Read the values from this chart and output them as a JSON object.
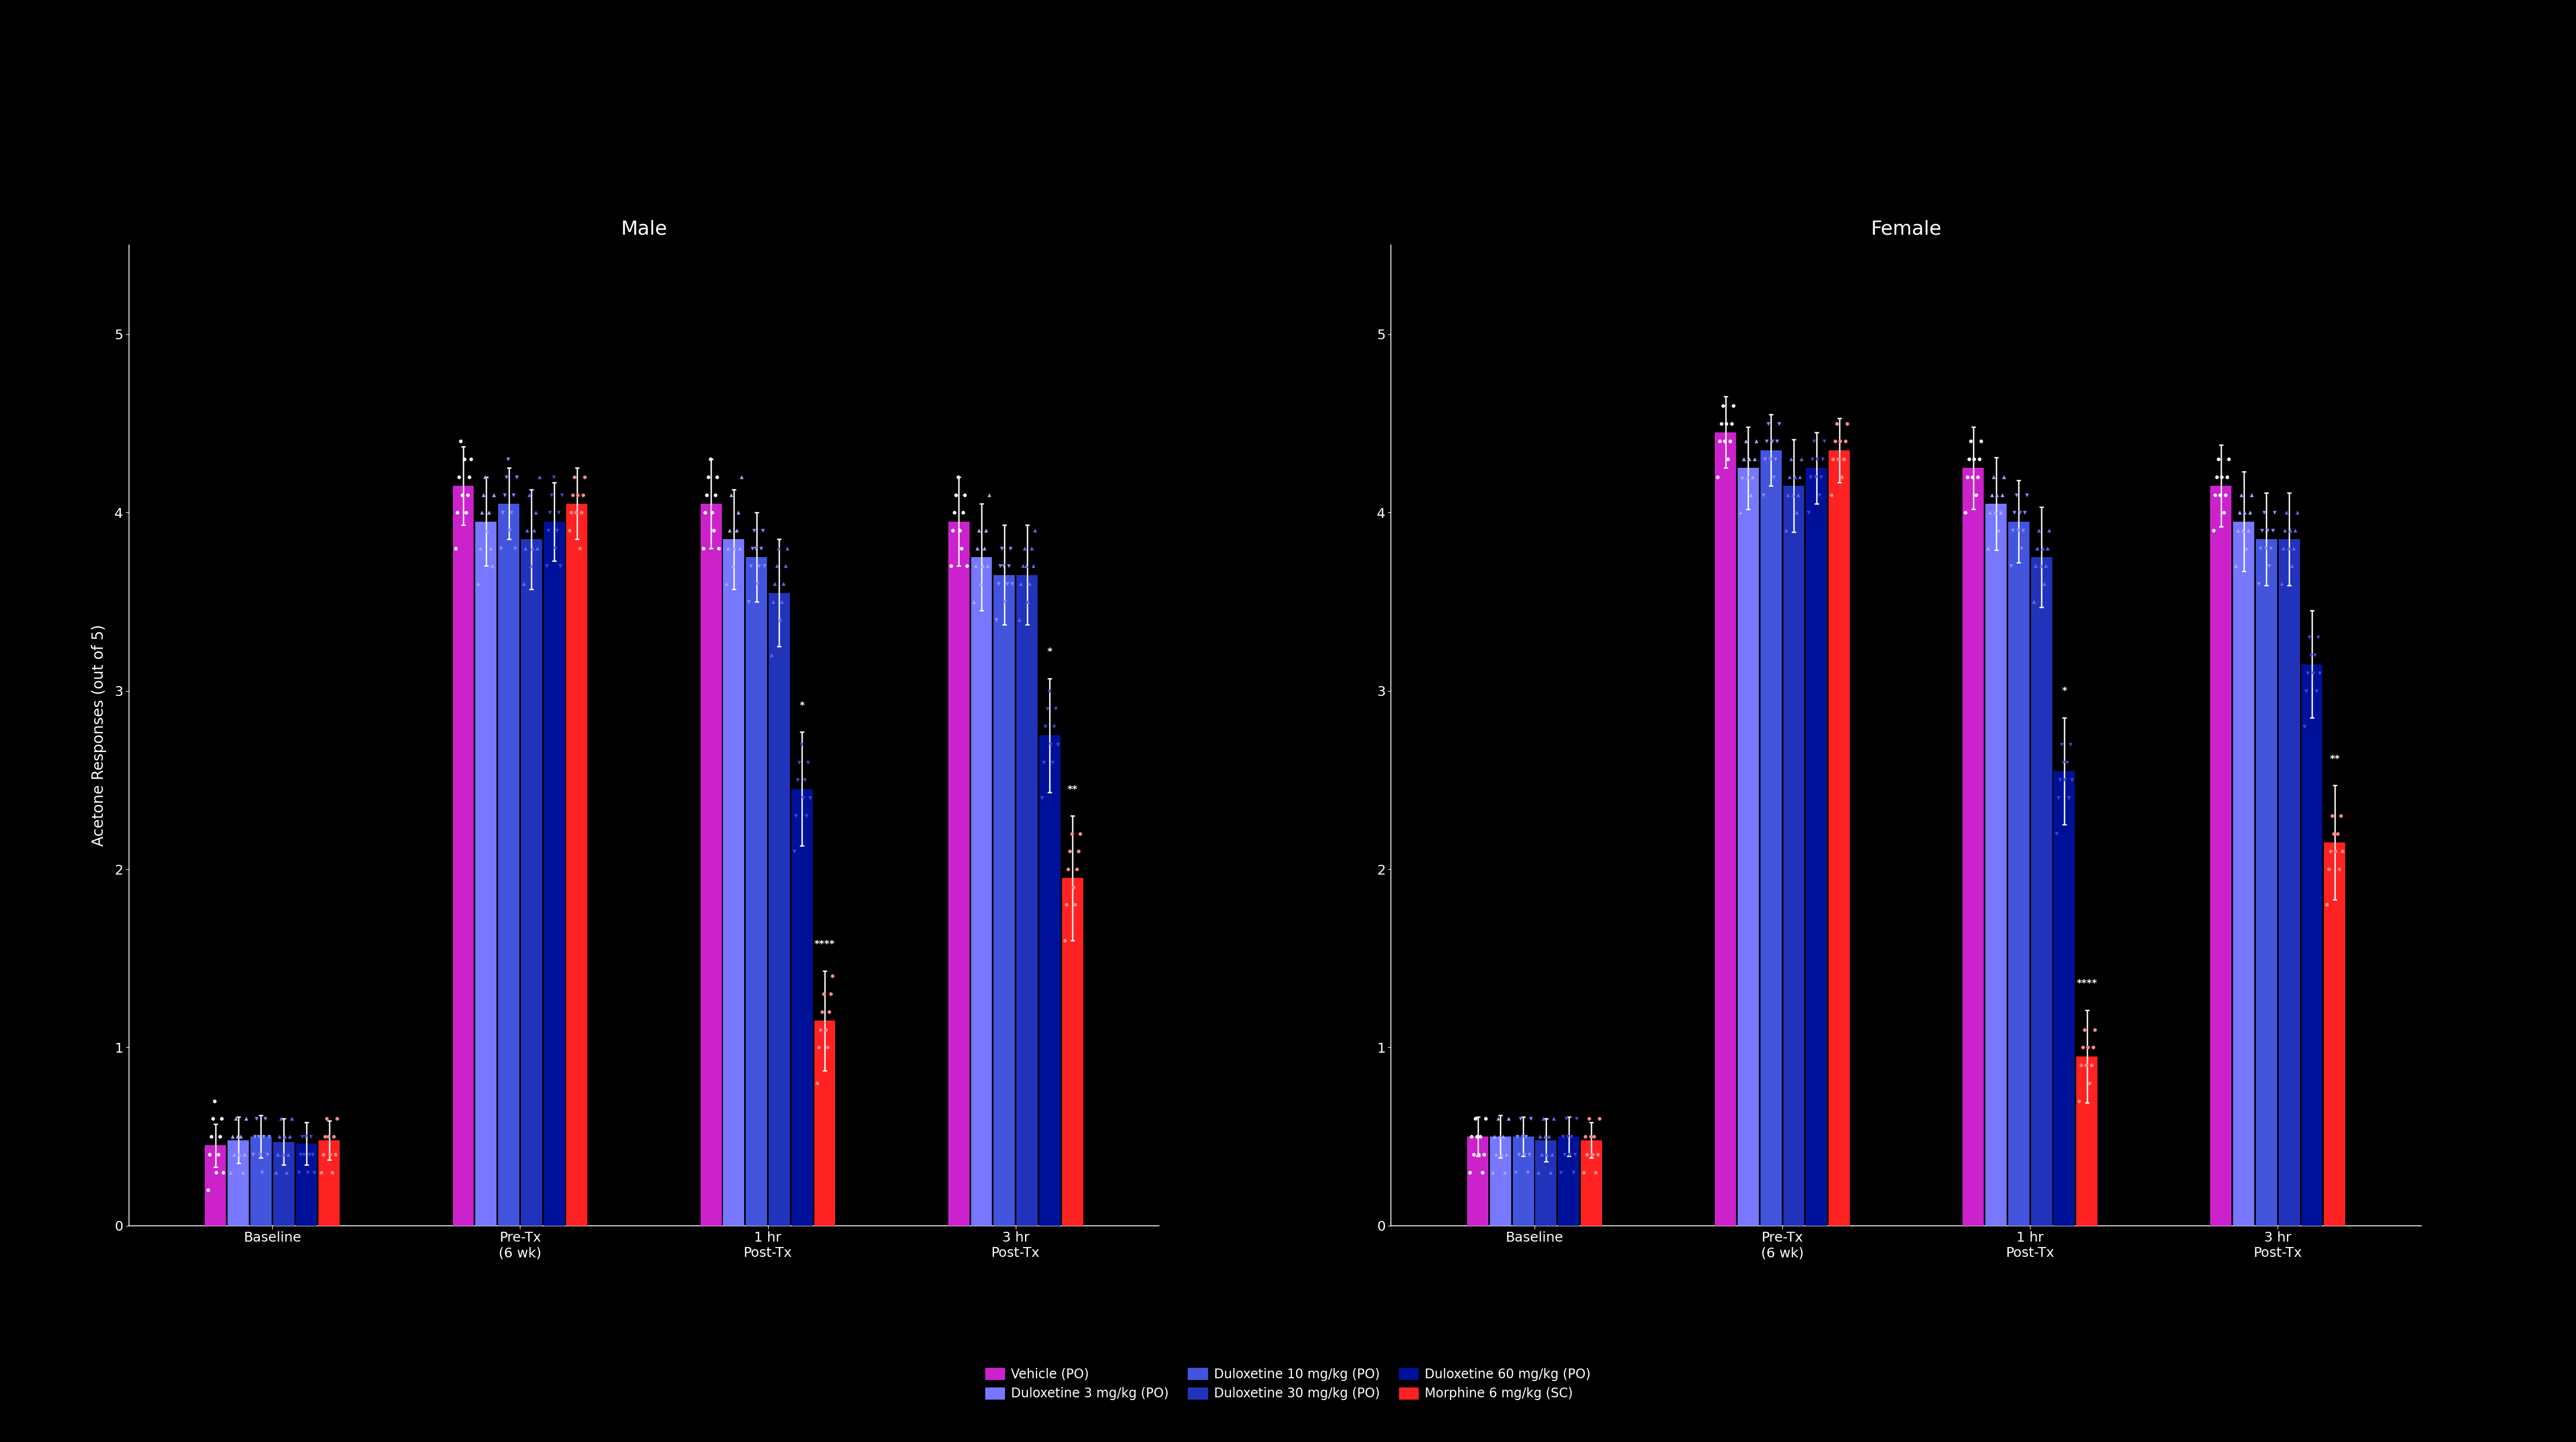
{
  "background_color": "#000000",
  "text_color": "#ffffff",
  "title_male": "Male",
  "title_female": "Female",
  "ylim": [
    0,
    5.5
  ],
  "yticks": [
    0,
    1,
    2,
    3,
    4,
    5
  ],
  "xlabel_timepoints": [
    "Baseline",
    "Pre-Tx\n(6 wk)",
    "1 hr\nPost-Tx",
    "3 hr\nPost-Tx"
  ],
  "group_colors": [
    "#cc22cc",
    "#7777ff",
    "#4455dd",
    "#2233bb",
    "#001199",
    "#ff2222"
  ],
  "male_data": {
    "means": [
      [
        0.45,
        0.48,
        0.5,
        0.47,
        0.46,
        0.48
      ],
      [
        4.15,
        3.95,
        4.05,
        3.85,
        3.95,
        4.05
      ],
      [
        4.05,
        3.85,
        3.75,
        3.55,
        2.45,
        1.15
      ],
      [
        3.95,
        3.75,
        3.65,
        3.65,
        2.75,
        1.95
      ]
    ],
    "sems": [
      [
        0.12,
        0.13,
        0.12,
        0.13,
        0.12,
        0.11
      ],
      [
        0.22,
        0.25,
        0.2,
        0.28,
        0.22,
        0.2
      ],
      [
        0.25,
        0.28,
        0.25,
        0.3,
        0.32,
        0.28
      ],
      [
        0.25,
        0.3,
        0.28,
        0.28,
        0.32,
        0.35
      ]
    ],
    "scatter_points": [
      [
        [
          0.2,
          0.4,
          0.5,
          0.6,
          0.7,
          0.3,
          0.4,
          0.5,
          0.6,
          0.3
        ],
        [
          0.3,
          0.5,
          0.4,
          0.6,
          0.5,
          0.4,
          0.5,
          0.3,
          0.4,
          0.6
        ],
        [
          0.4,
          0.5,
          0.6,
          0.5,
          0.4,
          0.3,
          0.5,
          0.6,
          0.4,
          0.5
        ],
        [
          0.3,
          0.4,
          0.5,
          0.6,
          0.4,
          0.5,
          0.3,
          0.4,
          0.5,
          0.6
        ],
        [
          0.3,
          0.4,
          0.5,
          0.4,
          0.5,
          0.3,
          0.4,
          0.5,
          0.4,
          0.3
        ],
        [
          0.3,
          0.4,
          0.5,
          0.6,
          0.5,
          0.4,
          0.3,
          0.5,
          0.4,
          0.6
        ]
      ],
      [
        [
          3.8,
          4.0,
          4.2,
          4.4,
          4.1,
          4.3,
          4.0,
          4.1,
          4.2,
          4.3
        ],
        [
          3.6,
          3.8,
          4.0,
          4.1,
          4.2,
          3.9,
          4.0,
          3.8,
          3.7,
          4.1
        ],
        [
          3.8,
          4.0,
          4.1,
          4.2,
          4.3,
          3.9,
          4.0,
          4.1,
          3.8,
          4.2
        ],
        [
          3.6,
          3.8,
          3.9,
          4.1,
          3.7,
          3.8,
          3.9,
          4.0,
          3.8,
          4.2
        ],
        [
          3.7,
          3.9,
          4.0,
          4.1,
          4.2,
          3.8,
          3.9,
          4.0,
          3.7,
          4.1
        ],
        [
          3.9,
          4.0,
          4.1,
          4.2,
          4.0,
          4.1,
          3.8,
          4.0,
          4.1,
          4.2
        ]
      ],
      [
        [
          3.8,
          4.0,
          4.1,
          4.2,
          4.3,
          4.0,
          3.9,
          4.1,
          4.2,
          3.8
        ],
        [
          3.6,
          3.8,
          3.9,
          4.1,
          3.7,
          3.8,
          3.9,
          4.0,
          3.8,
          4.2
        ],
        [
          3.5,
          3.7,
          3.8,
          3.9,
          3.8,
          3.6,
          3.7,
          3.8,
          3.9,
          3.7
        ],
        [
          3.2,
          3.5,
          3.6,
          3.7,
          3.8,
          3.4,
          3.5,
          3.6,
          3.7,
          3.8
        ],
        [
          2.1,
          2.3,
          2.5,
          2.6,
          2.7,
          2.4,
          2.5,
          2.3,
          2.6,
          2.4
        ],
        [
          0.8,
          1.0,
          1.1,
          1.2,
          1.3,
          1.1,
          1.0,
          1.2,
          1.3,
          1.4
        ]
      ],
      [
        [
          3.7,
          3.9,
          4.0,
          4.1,
          4.2,
          3.9,
          3.8,
          4.0,
          4.1,
          3.7
        ],
        [
          3.5,
          3.7,
          3.8,
          3.9,
          3.6,
          3.7,
          3.8,
          3.9,
          3.7,
          4.1
        ],
        [
          3.4,
          3.6,
          3.7,
          3.8,
          3.7,
          3.5,
          3.6,
          3.7,
          3.8,
          3.6
        ],
        [
          3.4,
          3.6,
          3.7,
          3.8,
          3.7,
          3.5,
          3.6,
          3.8,
          3.7,
          3.9
        ],
        [
          2.4,
          2.6,
          2.8,
          2.9,
          3.0,
          2.7,
          2.6,
          2.8,
          2.9,
          2.7
        ],
        [
          1.6,
          1.8,
          2.0,
          2.1,
          2.2,
          1.9,
          1.8,
          2.0,
          2.1,
          2.2
        ]
      ]
    ]
  },
  "female_data": {
    "means": [
      [
        0.5,
        0.5,
        0.5,
        0.48,
        0.5,
        0.48
      ],
      [
        4.45,
        4.25,
        4.35,
        4.15,
        4.25,
        4.35
      ],
      [
        4.25,
        4.05,
        3.95,
        3.75,
        2.55,
        0.95
      ],
      [
        4.15,
        3.95,
        3.85,
        3.85,
        3.15,
        2.15
      ]
    ],
    "sems": [
      [
        0.11,
        0.12,
        0.11,
        0.12,
        0.11,
        0.1
      ],
      [
        0.2,
        0.23,
        0.2,
        0.26,
        0.2,
        0.18
      ],
      [
        0.23,
        0.26,
        0.23,
        0.28,
        0.3,
        0.26
      ],
      [
        0.23,
        0.28,
        0.26,
        0.26,
        0.3,
        0.32
      ]
    ],
    "scatter_points": [
      [
        [
          0.3,
          0.5,
          0.4,
          0.6,
          0.5,
          0.4,
          0.5,
          0.3,
          0.4,
          0.6
        ],
        [
          0.3,
          0.5,
          0.4,
          0.6,
          0.5,
          0.4,
          0.5,
          0.3,
          0.4,
          0.6
        ],
        [
          0.3,
          0.5,
          0.4,
          0.6,
          0.5,
          0.4,
          0.5,
          0.3,
          0.4,
          0.6
        ],
        [
          0.3,
          0.5,
          0.4,
          0.6,
          0.5,
          0.4,
          0.5,
          0.3,
          0.4,
          0.6
        ],
        [
          0.3,
          0.5,
          0.4,
          0.6,
          0.5,
          0.4,
          0.5,
          0.3,
          0.4,
          0.6
        ],
        [
          0.3,
          0.5,
          0.4,
          0.6,
          0.5,
          0.4,
          0.5,
          0.3,
          0.4,
          0.6
        ]
      ],
      [
        [
          4.2,
          4.4,
          4.5,
          4.6,
          4.4,
          4.5,
          4.3,
          4.4,
          4.5,
          4.6
        ],
        [
          4.0,
          4.2,
          4.3,
          4.4,
          4.2,
          4.3,
          4.1,
          4.2,
          4.3,
          4.4
        ],
        [
          4.1,
          4.3,
          4.4,
          4.5,
          4.3,
          4.4,
          4.2,
          4.3,
          4.4,
          4.5
        ],
        [
          3.9,
          4.1,
          4.2,
          4.3,
          4.1,
          4.2,
          4.0,
          4.1,
          4.2,
          4.3
        ],
        [
          4.0,
          4.2,
          4.3,
          4.4,
          4.2,
          4.3,
          4.1,
          4.2,
          4.3,
          4.4
        ],
        [
          4.1,
          4.3,
          4.4,
          4.5,
          4.3,
          4.4,
          4.2,
          4.3,
          4.4,
          4.5
        ]
      ],
      [
        [
          4.0,
          4.2,
          4.3,
          4.4,
          4.2,
          4.3,
          4.1,
          4.2,
          4.3,
          4.4
        ],
        [
          3.8,
          4.0,
          4.1,
          4.2,
          4.0,
          4.1,
          3.9,
          4.0,
          4.1,
          4.2
        ],
        [
          3.7,
          3.9,
          4.0,
          4.1,
          3.9,
          4.0,
          3.8,
          3.9,
          4.0,
          4.1
        ],
        [
          3.5,
          3.7,
          3.8,
          3.9,
          3.7,
          3.8,
          3.6,
          3.7,
          3.8,
          3.9
        ],
        [
          2.2,
          2.4,
          2.5,
          2.7,
          2.6,
          2.5,
          2.6,
          2.4,
          2.7,
          2.5
        ],
        [
          0.7,
          0.9,
          1.0,
          1.1,
          0.9,
          1.0,
          0.8,
          0.9,
          1.0,
          1.1
        ]
      ],
      [
        [
          3.9,
          4.1,
          4.2,
          4.3,
          4.1,
          4.2,
          4.0,
          4.1,
          4.2,
          4.3
        ],
        [
          3.7,
          3.9,
          4.0,
          4.1,
          3.9,
          4.0,
          3.8,
          3.9,
          4.0,
          4.1
        ],
        [
          3.6,
          3.8,
          3.9,
          4.0,
          3.8,
          3.9,
          3.7,
          3.8,
          3.9,
          4.0
        ],
        [
          3.6,
          3.8,
          3.9,
          4.0,
          3.8,
          3.9,
          3.7,
          3.8,
          3.9,
          4.0
        ],
        [
          2.8,
          3.0,
          3.1,
          3.3,
          3.2,
          3.1,
          3.2,
          3.0,
          3.3,
          3.1
        ],
        [
          1.8,
          2.0,
          2.1,
          2.3,
          2.2,
          2.1,
          2.2,
          2.0,
          2.3,
          2.1
        ]
      ]
    ]
  },
  "sig_annotations": {
    "male": {
      "2": {
        "4": "*",
        "5": "****"
      },
      "3": {
        "4": "*",
        "5": "**"
      }
    },
    "female": {
      "2": {
        "4": "*",
        "5": "****"
      },
      "3": {
        "5": "**"
      }
    }
  },
  "legend_labels": [
    "Vehicle (PO)",
    "Duloxetine 3 mg/kg (PO)",
    "Duloxetine 10 mg/kg (PO)",
    "Duloxetine 30 mg/kg (PO)",
    "Duloxetine 60 mg/kg (PO)",
    "Morphine 6 mg/kg (SC)"
  ],
  "scatter_markers": [
    "o",
    "^",
    "v",
    "^",
    "v",
    "o"
  ],
  "scatter_marker_colors": [
    "#ffffff",
    "#aaaaff",
    "#8888ff",
    "#6666ee",
    "#4444cc",
    "#ff8888"
  ]
}
